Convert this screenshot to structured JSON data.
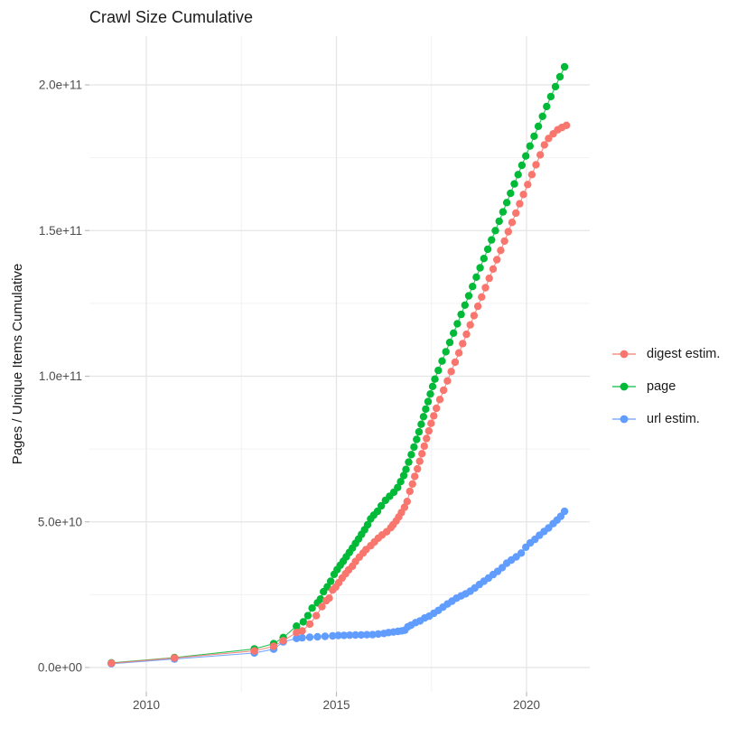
{
  "title": "Crawl Size Cumulative",
  "y_axis": {
    "label": "Pages / Unique Items Cumulative",
    "ticks": [
      "0.0e+00",
      "5.0e+10",
      "1.0e+11",
      "1.5e+11",
      "2.0e+11"
    ],
    "tick_values": [
      0,
      50,
      100,
      150,
      200
    ]
  },
  "x_axis": {
    "ticks": [
      "2010",
      "2015",
      "2020"
    ],
    "tick_values": [
      2010,
      2015,
      2020
    ]
  },
  "legend": [
    {
      "label": "digest estim.",
      "color": "#F8766D"
    },
    {
      "label": "page",
      "color": "#00BA38"
    },
    {
      "label": "url estim.",
      "color": "#619CFF"
    }
  ],
  "colors": {
    "digest": "#F8766D",
    "page": "#00BA38",
    "url": "#619CFF",
    "grid_major": "#e4e4e4",
    "grid_minor": "#f2f2f2",
    "tick_mark": "#bdbdbd"
  },
  "chart_data": {
    "type": "scatter",
    "title": "Crawl Size Cumulative",
    "xlabel": "",
    "ylabel": "Pages / Unique Items Cumulative",
    "x_unit": "year",
    "y_unit": "pages / unique items, billions (1e9)",
    "xlim": [
      2008.5,
      2021.65
    ],
    "ylim_billions": [
      0,
      215
    ],
    "grid": true,
    "legend_position": "right",
    "series": [
      {
        "name": "digest estim.",
        "color": "#F8766D",
        "points": [
          [
            2009.08,
            1.5
          ],
          [
            2010.74,
            3.3
          ],
          [
            2012.84,
            5.7
          ],
          [
            2013.35,
            7.3
          ],
          [
            2013.6,
            9.2
          ],
          [
            2013.95,
            12.0
          ],
          [
            2014.1,
            12.6
          ],
          [
            2014.3,
            14.9
          ],
          [
            2014.47,
            17.8
          ],
          [
            2014.62,
            20.9
          ],
          [
            2014.73,
            22.9
          ],
          [
            2014.81,
            23.8
          ],
          [
            2014.9,
            26.6
          ],
          [
            2014.98,
            27.6
          ],
          [
            2015.06,
            29.1
          ],
          [
            2015.15,
            30.7
          ],
          [
            2015.24,
            32.2
          ],
          [
            2015.32,
            33.5
          ],
          [
            2015.42,
            34.8
          ],
          [
            2015.5,
            36.4
          ],
          [
            2015.6,
            37.9
          ],
          [
            2015.7,
            39.3
          ],
          [
            2015.78,
            40.5
          ],
          [
            2015.9,
            41.8
          ],
          [
            2016.0,
            43.1
          ],
          [
            2016.1,
            44.4
          ],
          [
            2016.2,
            45.5
          ],
          [
            2016.32,
            46.6
          ],
          [
            2016.43,
            48.0
          ],
          [
            2016.49,
            49.0
          ],
          [
            2016.57,
            50.3
          ],
          [
            2016.64,
            51.7
          ],
          [
            2016.71,
            53.2
          ],
          [
            2016.79,
            55.0
          ],
          [
            2016.86,
            57.0
          ],
          [
            2016.93,
            60.5
          ],
          [
            2017.0,
            63.0
          ],
          [
            2017.06,
            65.6
          ],
          [
            2017.13,
            68.2
          ],
          [
            2017.19,
            70.8
          ],
          [
            2017.25,
            73.4
          ],
          [
            2017.31,
            76.0
          ],
          [
            2017.37,
            78.6
          ],
          [
            2017.43,
            81.2
          ],
          [
            2017.49,
            83.8
          ],
          [
            2017.56,
            86.4
          ],
          [
            2017.63,
            89.0
          ],
          [
            2017.72,
            92.0
          ],
          [
            2017.82,
            95.2
          ],
          [
            2017.92,
            98.4
          ],
          [
            2018.02,
            101.6
          ],
          [
            2018.12,
            104.8
          ],
          [
            2018.22,
            108.0
          ],
          [
            2018.32,
            111.2
          ],
          [
            2018.42,
            114.4
          ],
          [
            2018.52,
            117.6
          ],
          [
            2018.62,
            120.8
          ],
          [
            2018.72,
            124.0
          ],
          [
            2018.82,
            127.2
          ],
          [
            2018.92,
            130.4
          ],
          [
            2019.02,
            133.6
          ],
          [
            2019.12,
            136.8
          ],
          [
            2019.22,
            140.0
          ],
          [
            2019.32,
            143.2
          ],
          [
            2019.42,
            146.4
          ],
          [
            2019.52,
            149.6
          ],
          [
            2019.62,
            152.8
          ],
          [
            2019.72,
            156.0
          ],
          [
            2019.82,
            159.2
          ],
          [
            2019.92,
            162.4
          ],
          [
            2020.03,
            165.8
          ],
          [
            2020.14,
            169.2
          ],
          [
            2020.25,
            172.6
          ],
          [
            2020.36,
            176.0
          ],
          [
            2020.47,
            179.4
          ],
          [
            2020.58,
            181.6
          ],
          [
            2020.7,
            183.2
          ],
          [
            2020.82,
            184.6
          ],
          [
            2020.93,
            185.4
          ],
          [
            2021.05,
            186.1
          ]
        ]
      },
      {
        "name": "page",
        "color": "#00BA38",
        "points": [
          [
            2009.08,
            1.6
          ],
          [
            2010.74,
            3.4
          ],
          [
            2012.84,
            6.4
          ],
          [
            2013.35,
            8.2
          ],
          [
            2013.6,
            10.3
          ],
          [
            2013.95,
            14.2
          ],
          [
            2014.13,
            15.7
          ],
          [
            2014.25,
            17.8
          ],
          [
            2014.36,
            20.4
          ],
          [
            2014.5,
            22.2
          ],
          [
            2014.58,
            23.5
          ],
          [
            2014.66,
            26.0
          ],
          [
            2014.76,
            27.7
          ],
          [
            2014.85,
            29.6
          ],
          [
            2014.94,
            32.0
          ],
          [
            2015.02,
            33.6
          ],
          [
            2015.1,
            35.1
          ],
          [
            2015.18,
            36.5
          ],
          [
            2015.26,
            38.0
          ],
          [
            2015.34,
            39.5
          ],
          [
            2015.42,
            41.0
          ],
          [
            2015.5,
            42.6
          ],
          [
            2015.58,
            44.1
          ],
          [
            2015.66,
            45.7
          ],
          [
            2015.74,
            47.3
          ],
          [
            2015.82,
            49.0
          ],
          [
            2015.9,
            51.0
          ],
          [
            2015.98,
            52.3
          ],
          [
            2016.08,
            53.6
          ],
          [
            2016.18,
            55.5
          ],
          [
            2016.29,
            57.4
          ],
          [
            2016.4,
            58.8
          ],
          [
            2016.51,
            60.2
          ],
          [
            2016.61,
            61.8
          ],
          [
            2016.69,
            63.8
          ],
          [
            2016.77,
            65.9
          ],
          [
            2016.83,
            68.0
          ],
          [
            2016.9,
            70.5
          ],
          [
            2016.97,
            73.1
          ],
          [
            2017.04,
            75.7
          ],
          [
            2017.11,
            78.3
          ],
          [
            2017.17,
            80.9
          ],
          [
            2017.23,
            83.5
          ],
          [
            2017.29,
            86.1
          ],
          [
            2017.35,
            88.7
          ],
          [
            2017.41,
            91.3
          ],
          [
            2017.47,
            93.9
          ],
          [
            2017.53,
            96.5
          ],
          [
            2017.59,
            99.0
          ],
          [
            2017.68,
            102.0
          ],
          [
            2017.78,
            105.2
          ],
          [
            2017.88,
            108.4
          ],
          [
            2017.98,
            111.6
          ],
          [
            2018.08,
            114.8
          ],
          [
            2018.18,
            118.0
          ],
          [
            2018.28,
            121.2
          ],
          [
            2018.38,
            124.4
          ],
          [
            2018.48,
            127.6
          ],
          [
            2018.58,
            130.8
          ],
          [
            2018.68,
            134.0
          ],
          [
            2018.78,
            137.2
          ],
          [
            2018.88,
            140.4
          ],
          [
            2018.98,
            143.6
          ],
          [
            2019.08,
            146.8
          ],
          [
            2019.18,
            150.0
          ],
          [
            2019.28,
            153.2
          ],
          [
            2019.38,
            156.4
          ],
          [
            2019.48,
            159.6
          ],
          [
            2019.58,
            162.8
          ],
          [
            2019.68,
            166.0
          ],
          [
            2019.78,
            169.2
          ],
          [
            2019.88,
            172.4
          ],
          [
            2019.98,
            175.6
          ],
          [
            2020.09,
            179.0
          ],
          [
            2020.2,
            182.4
          ],
          [
            2020.31,
            185.8
          ],
          [
            2020.42,
            189.2
          ],
          [
            2020.53,
            192.6
          ],
          [
            2020.64,
            196.0
          ],
          [
            2020.76,
            199.4
          ],
          [
            2020.88,
            202.8
          ],
          [
            2021.0,
            206.2
          ]
        ]
      },
      {
        "name": "url estim.",
        "color": "#619CFF",
        "points": [
          [
            2009.08,
            1.3
          ],
          [
            2010.74,
            2.9
          ],
          [
            2012.84,
            5.0
          ],
          [
            2013.35,
            6.3
          ],
          [
            2013.6,
            8.8
          ],
          [
            2013.95,
            10.0
          ],
          [
            2014.1,
            10.2
          ],
          [
            2014.3,
            10.4
          ],
          [
            2014.5,
            10.55
          ],
          [
            2014.7,
            10.7
          ],
          [
            2014.9,
            10.85
          ],
          [
            2015.05,
            11.0
          ],
          [
            2015.2,
            11.05
          ],
          [
            2015.35,
            11.1
          ],
          [
            2015.5,
            11.15
          ],
          [
            2015.65,
            11.2
          ],
          [
            2015.8,
            11.25
          ],
          [
            2015.95,
            11.3
          ],
          [
            2016.1,
            11.5
          ],
          [
            2016.25,
            11.7
          ],
          [
            2016.37,
            12.0
          ],
          [
            2016.5,
            12.2
          ],
          [
            2016.62,
            12.4
          ],
          [
            2016.72,
            12.6
          ],
          [
            2016.8,
            12.8
          ],
          [
            2016.88,
            14.0
          ],
          [
            2016.96,
            14.5
          ],
          [
            2017.08,
            15.4
          ],
          [
            2017.2,
            16.0
          ],
          [
            2017.32,
            17.0
          ],
          [
            2017.44,
            17.6
          ],
          [
            2017.56,
            18.6
          ],
          [
            2017.68,
            19.6
          ],
          [
            2017.8,
            20.7
          ],
          [
            2017.92,
            21.8
          ],
          [
            2018.04,
            22.8
          ],
          [
            2018.16,
            23.8
          ],
          [
            2018.28,
            24.6
          ],
          [
            2018.4,
            25.3
          ],
          [
            2018.52,
            26.2
          ],
          [
            2018.64,
            27.3
          ],
          [
            2018.76,
            28.5
          ],
          [
            2018.88,
            29.6
          ],
          [
            2019.0,
            30.7
          ],
          [
            2019.12,
            31.9
          ],
          [
            2019.24,
            33.0
          ],
          [
            2019.36,
            34.3
          ],
          [
            2019.48,
            35.8
          ],
          [
            2019.6,
            36.9
          ],
          [
            2019.73,
            38.0
          ],
          [
            2019.86,
            39.3
          ],
          [
            2019.98,
            41.3
          ],
          [
            2020.1,
            42.8
          ],
          [
            2020.22,
            44.0
          ],
          [
            2020.34,
            45.4
          ],
          [
            2020.46,
            46.7
          ],
          [
            2020.58,
            47.9
          ],
          [
            2020.7,
            49.4
          ],
          [
            2020.8,
            50.6
          ],
          [
            2020.9,
            51.9
          ],
          [
            2021.0,
            53.6
          ]
        ]
      }
    ]
  }
}
